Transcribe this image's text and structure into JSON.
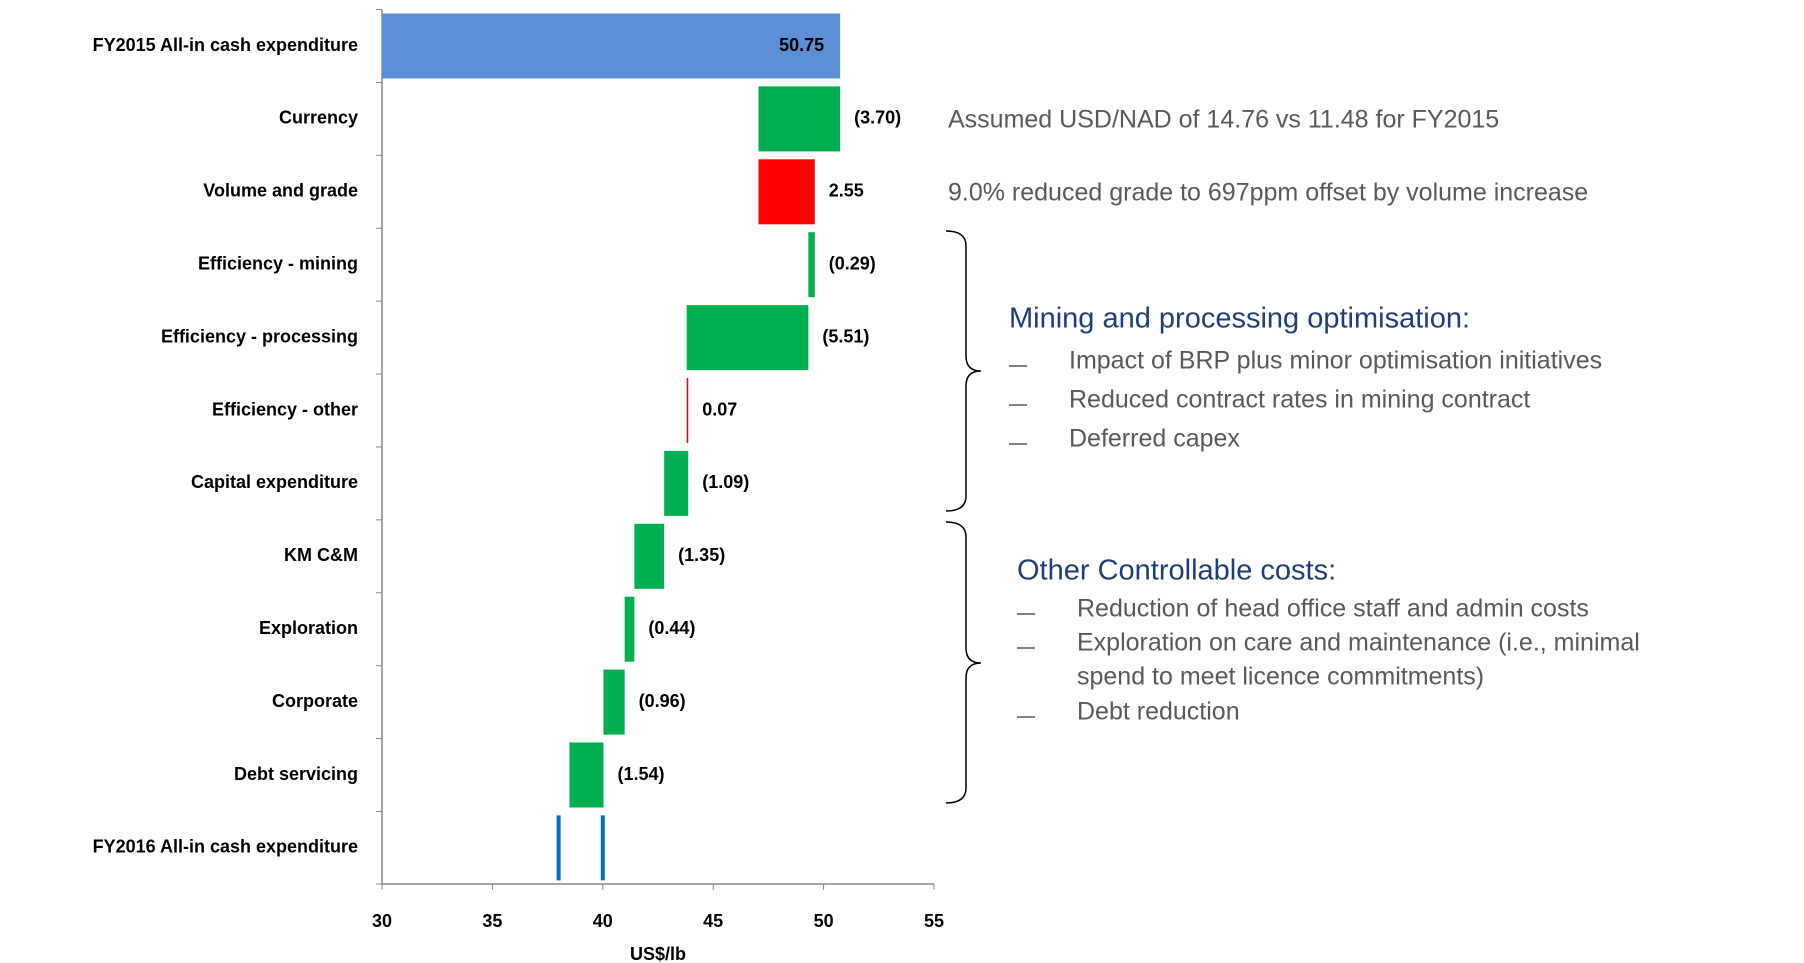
{
  "chart_data": {
    "type": "waterfall",
    "xlabel": "US$/lb",
    "categories": [
      "FY2015 All-in cash expenditure",
      "Currency",
      "Volume and grade",
      "Efficiency - mining",
      "Efficiency - processing",
      "Efficiency - other",
      "Capital expenditure",
      "KM C&M",
      "Exploration",
      "Corporate",
      "Debt servicing",
      "FY2016 All-in cash expenditure"
    ],
    "values": [
      50.75,
      -3.7,
      2.55,
      -0.29,
      -5.51,
      0.07,
      -1.09,
      -1.35,
      -0.44,
      -0.96,
      -1.54,
      null
    ],
    "value_labels": [
      "50.75",
      "(3.70)",
      "2.55",
      "(0.29)",
      "(5.51)",
      "0.07",
      "(1.09)",
      "(1.35)",
      "(0.44)",
      "(0.96)",
      "(1.54)",
      null
    ],
    "total_lines": [
      38,
      40
    ],
    "colors": {
      "total": "#5b8fd6",
      "decrease": "#00b050",
      "increase": "#ff0000",
      "final": "#0070c0"
    },
    "xlim": [
      30,
      55
    ],
    "xticks": [
      30,
      35,
      40,
      45,
      50,
      55
    ],
    "annotations": {
      "notes": [
        "Assumed USD/NAD of 14.76 vs 11.48 for FY2015",
        "9.0% reduced grade to 697ppm offset by volume increase"
      ],
      "groups": [
        {
          "heading": "Mining and processing optimisation:",
          "bullets": [
            [
              "Impact of BRP plus minor optimisation initiatives"
            ],
            [
              "Reduced contract rates in mining contract"
            ],
            [
              "Deferred capex"
            ]
          ]
        },
        {
          "heading": "Other Controllable costs:",
          "bullets": [
            [
              "Reduction of head office staff and admin costs"
            ],
            [
              "Exploration on care and maintenance (i.e., minimal",
              " spend to meet licence commitments)"
            ],
            [
              "Debt reduction"
            ]
          ]
        }
      ]
    }
  }
}
